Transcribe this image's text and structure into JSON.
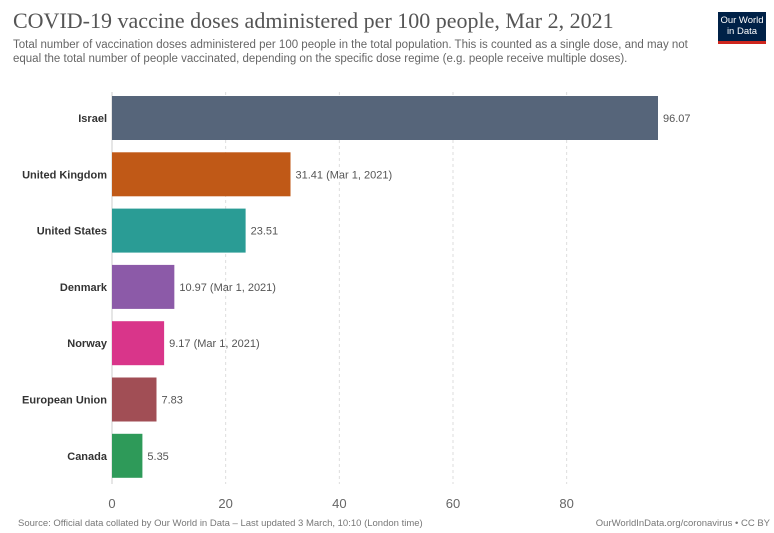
{
  "header": {
    "title": "COVID-19 vaccine doses administered per 100 people, Mar 2, 2021",
    "subtitle": "Total number of vaccination doses administered per 100 people in the total population. This is counted as a single dose, and may not equal the total number of people vaccinated, depending on the specific dose regime (e.g. people receive multiple doses)."
  },
  "logo": {
    "line1": "Our World",
    "line2": "in Data"
  },
  "chart_data": {
    "type": "bar",
    "orientation": "horizontal",
    "categories": [
      "Israel",
      "United Kingdom",
      "United States",
      "Denmark",
      "Norway",
      "European Union",
      "Canada"
    ],
    "values": [
      96.07,
      31.41,
      23.51,
      10.97,
      9.17,
      7.83,
      5.35
    ],
    "value_labels": [
      "96.07",
      "31.41 (Mar 1, 2021)",
      "23.51",
      "10.97 (Mar 1, 2021)",
      "9.17 (Mar 1, 2021)",
      "7.83",
      "5.35"
    ],
    "colors": [
      "#56657a",
      "#c05917",
      "#2a9c95",
      "#8c5aa8",
      "#d9358a",
      "#a14e55",
      "#2e9a59"
    ],
    "xticks": [
      0,
      20,
      40,
      60,
      80
    ],
    "xlim": [
      0,
      96.07
    ],
    "grid": true
  },
  "footer": {
    "source": "Source: Official data collated by Our World in Data – Last updated 3 March, 10:10 (London time)",
    "link": "OurWorldInData.org/coronavirus • CC BY"
  }
}
